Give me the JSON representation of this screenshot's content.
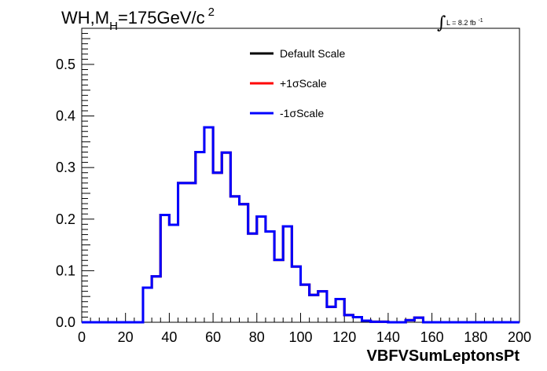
{
  "chart_data": {
    "type": "histogram",
    "title": {
      "prefix": "WH,M",
      "subscript": "H",
      "main": "=175GeV/c",
      "superscript": "2"
    },
    "luminosity": {
      "integral_symbol": "∫",
      "text": "L = 8.2 fb",
      "superscript": "-1"
    },
    "xlabel": "VBFVSumLeptonsPt",
    "ylabel": "",
    "xlim": [
      0,
      200
    ],
    "ylim": [
      0,
      0.57
    ],
    "x_ticks": [
      0,
      20,
      40,
      60,
      80,
      100,
      120,
      140,
      160,
      180,
      200
    ],
    "y_ticks": [
      0.0,
      0.1,
      0.2,
      0.3,
      0.4,
      0.5
    ],
    "bin_edges": [
      0,
      4,
      8,
      12,
      16,
      20,
      24,
      28,
      32,
      36,
      40,
      44,
      48,
      52,
      56,
      60,
      64,
      68,
      72,
      76,
      80,
      84,
      88,
      92,
      96,
      100,
      104,
      108,
      112,
      116,
      120,
      124,
      128,
      132,
      136,
      140,
      144,
      148,
      152,
      156,
      160,
      164,
      168,
      172,
      176,
      180,
      184,
      188,
      192,
      196,
      200
    ],
    "legend": {
      "position": "top-center",
      "entries": [
        {
          "label": "Default Scale",
          "color": "#000000"
        },
        {
          "label": "+1σScale",
          "color": "#ff0000"
        },
        {
          "label": "-1σScale",
          "color": "#0000ff"
        }
      ]
    },
    "series": [
      {
        "name": "Default Scale",
        "color": "#000000",
        "values": [
          0,
          0,
          0,
          0,
          0,
          0,
          0,
          0.067,
          0.089,
          0.208,
          0.189,
          0.27,
          0.27,
          0.33,
          0.378,
          0.29,
          0.329,
          0.244,
          0.229,
          0.172,
          0.205,
          0.176,
          0.121,
          0.186,
          0.108,
          0.073,
          0.053,
          0.06,
          0.03,
          0.045,
          0.014,
          0.01,
          0.003,
          0.001,
          0.001,
          0,
          0,
          0.004,
          0.009,
          0,
          0,
          0,
          0,
          0,
          0,
          0,
          0,
          0,
          0,
          0
        ]
      },
      {
        "name": "+1σScale",
        "color": "#ff0000",
        "values": [
          0,
          0,
          0,
          0,
          0,
          0,
          0,
          0.067,
          0.089,
          0.208,
          0.189,
          0.27,
          0.27,
          0.33,
          0.378,
          0.29,
          0.329,
          0.244,
          0.229,
          0.172,
          0.205,
          0.176,
          0.121,
          0.186,
          0.108,
          0.073,
          0.053,
          0.06,
          0.03,
          0.045,
          0.014,
          0.01,
          0.003,
          0.001,
          0.001,
          0,
          0,
          0.004,
          0.009,
          0,
          0,
          0,
          0,
          0,
          0,
          0,
          0,
          0,
          0,
          0
        ]
      },
      {
        "name": "-1σScale",
        "color": "#0000ff",
        "values": [
          0,
          0,
          0,
          0,
          0,
          0,
          0,
          0.067,
          0.089,
          0.208,
          0.189,
          0.27,
          0.27,
          0.33,
          0.378,
          0.29,
          0.329,
          0.244,
          0.229,
          0.172,
          0.205,
          0.176,
          0.121,
          0.186,
          0.108,
          0.073,
          0.053,
          0.06,
          0.03,
          0.045,
          0.014,
          0.01,
          0.003,
          0.001,
          0.001,
          0,
          0,
          0.004,
          0.009,
          0,
          0,
          0,
          0,
          0,
          0,
          0,
          0,
          0,
          0,
          0
        ]
      }
    ],
    "grid": false
  }
}
